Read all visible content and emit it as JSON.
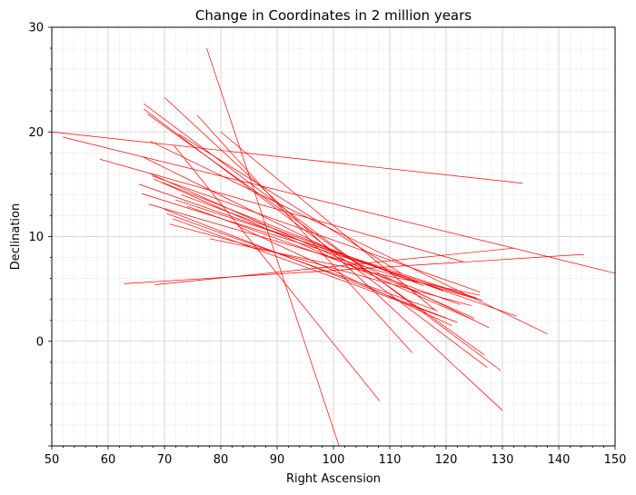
{
  "chart_data": {
    "type": "line",
    "title": "Change in Coordinates in 2 million years",
    "xlabel": "Right Ascension",
    "ylabel": "Declination",
    "xlim": [
      50,
      150
    ],
    "ylim": [
      -10,
      30
    ],
    "xticks": [
      50,
      60,
      70,
      80,
      90,
      100,
      110,
      120,
      130,
      140,
      150
    ],
    "yticks": [
      0,
      10,
      20,
      30
    ],
    "grid": true,
    "line_color": "#ff0000",
    "segments": [
      {
        "x": [
          77.5,
          101.0
        ],
        "y": [
          28.0,
          -10.0
        ]
      },
      {
        "x": [
          50.0,
          133.6
        ],
        "y": [
          20.0,
          15.1
        ]
      },
      {
        "x": [
          52.0,
          150.0
        ],
        "y": [
          19.5,
          6.5
        ]
      },
      {
        "x": [
          62.8,
          144.5
        ],
        "y": [
          5.5,
          8.3
        ]
      },
      {
        "x": [
          68.3,
          132.0
        ],
        "y": [
          5.4,
          8.9
        ]
      },
      {
        "x": [
          71.7,
          108.2
        ],
        "y": [
          18.7,
          -5.7
        ]
      },
      {
        "x": [
          70.0,
          130.0
        ],
        "y": [
          23.3,
          -6.6
        ]
      },
      {
        "x": [
          66.3,
          129.7
        ],
        "y": [
          22.7,
          -2.8
        ]
      },
      {
        "x": [
          66.3,
          127.3
        ],
        "y": [
          22.2,
          -2.5
        ]
      },
      {
        "x": [
          67.0,
          126.8
        ],
        "y": [
          21.7,
          -1.3
        ]
      },
      {
        "x": [
          75.8,
          114.0
        ],
        "y": [
          21.6,
          -1.1
        ]
      },
      {
        "x": [
          67.5,
          138.0
        ],
        "y": [
          19.1,
          0.7
        ]
      },
      {
        "x": [
          58.5,
          123.0
        ],
        "y": [
          17.4,
          7.6
        ]
      },
      {
        "x": [
          66.2,
          127.6
        ],
        "y": [
          17.6,
          1.3
        ]
      },
      {
        "x": [
          67.5,
          125.0
        ],
        "y": [
          16.0,
          2.2
        ]
      },
      {
        "x": [
          67.8,
          126.0
        ],
        "y": [
          15.8,
          4.7
        ]
      },
      {
        "x": [
          68.1,
          125.0
        ],
        "y": [
          15.5,
          2.0
        ]
      },
      {
        "x": [
          65.5,
          132.5
        ],
        "y": [
          15.0,
          2.4
        ]
      },
      {
        "x": [
          66.0,
          126.5
        ],
        "y": [
          14.1,
          3.9
        ]
      },
      {
        "x": [
          67.2,
          125.0
        ],
        "y": [
          13.1,
          4.1
        ]
      },
      {
        "x": [
          70.0,
          122.0
        ],
        "y": [
          12.6,
          1.8
        ]
      },
      {
        "x": [
          71.5,
          120.0
        ],
        "y": [
          11.7,
          2.2
        ]
      },
      {
        "x": [
          70.9,
          124.5
        ],
        "y": [
          11.2,
          3.4
        ]
      },
      {
        "x": [
          78.0,
          126.0
        ],
        "y": [
          9.8,
          4.4
        ]
      },
      {
        "x": [
          70.4,
          118.5
        ],
        "y": [
          12.2,
          2.9
        ]
      },
      {
        "x": [
          73.0,
          119.5
        ],
        "y": [
          14.0,
          4.8
        ]
      },
      {
        "x": [
          72.0,
          125.5
        ],
        "y": [
          13.5,
          4.1
        ]
      },
      {
        "x": [
          69.5,
          116.0
        ],
        "y": [
          15.2,
          5.3
        ]
      },
      {
        "x": [
          74.0,
          122.5
        ],
        "y": [
          12.9,
          3.5
        ]
      },
      {
        "x": [
          80.0,
          118.0
        ],
        "y": [
          20.0,
          3.0
        ]
      },
      {
        "x": [
          72.5,
          112.0
        ],
        "y": [
          19.8,
          6.5
        ]
      },
      {
        "x": [
          83.0,
          121.0
        ],
        "y": [
          11.0,
          1.5
        ]
      }
    ]
  }
}
